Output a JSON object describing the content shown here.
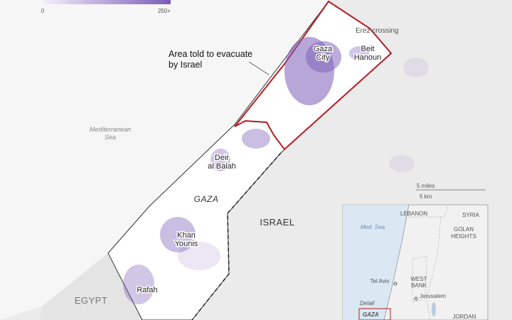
{
  "legend": {
    "ticks": [
      0,
      {
        "value": 250,
        "label": "250+"
      }
    ]
  },
  "labels": {
    "erez": "Erez crossing",
    "gaza_city": [
      "Gaza",
      "City"
    ],
    "beit_hanoun": [
      "Beit",
      "Hanoun"
    ],
    "evacuate": [
      "Area told to evacuate",
      "by Israel"
    ],
    "sea": [
      "Mediterranean",
      "Sea"
    ],
    "deir": [
      "Deir",
      "al Balah"
    ],
    "gaza": "GAZA",
    "israel": "ISRAEL",
    "khan": [
      "Khan",
      "Younis"
    ],
    "rafah": "Rafah",
    "egypt": "EGYPT",
    "scale_miles": "5 miles",
    "scale_km": "5 km"
  },
  "inset": {
    "lebanon": "LEBANON",
    "syria": "SYRIA",
    "med": "Med. Sea",
    "golan": [
      "GOLAN",
      "HEIGHTS"
    ],
    "tel_aviv": "Tel Aviv",
    "west_bank": [
      "WEST",
      "BANK"
    ],
    "jerusalem": "Jerusalem",
    "detail": "Detail",
    "gaza": "GAZA",
    "jordan": "JORDAN"
  }
}
